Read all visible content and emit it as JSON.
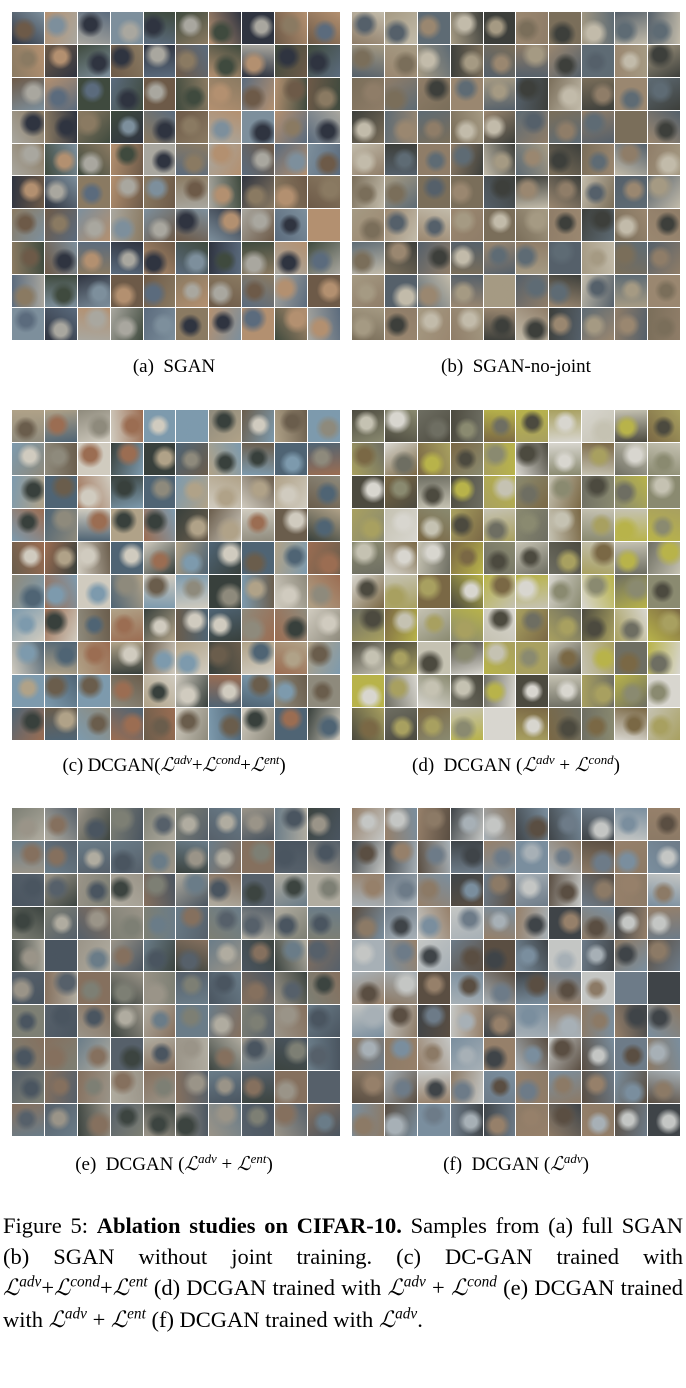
{
  "panels": [
    {
      "id": "a",
      "label": "(a)",
      "name": "SGAN",
      "palette": [
        "#5b6b7d",
        "#8a7a62",
        "#3f4a3e",
        "#a9a79f",
        "#6d5a48",
        "#2f3440",
        "#7d8f9c",
        "#b39070"
      ]
    },
    {
      "id": "b",
      "label": "(b)",
      "name": "SGAN-no-joint",
      "palette": [
        "#7a6e5a",
        "#5e6b74",
        "#a59a83",
        "#3d3f3b",
        "#8f7d68",
        "#c2bbaa",
        "#55606a",
        "#9a8770"
      ]
    },
    {
      "id": "c",
      "label": "(c)",
      "name": "DCGAN",
      "palette": [
        "#6a5d4c",
        "#4f6474",
        "#8e8a7c",
        "#b0a288",
        "#38403c",
        "#7d9aad",
        "#9b6d52",
        "#d0cbbf"
      ]
    },
    {
      "id": "d",
      "label": "(d)",
      "name": "DCGAN",
      "palette": [
        "#8a8a70",
        "#c5c2b2",
        "#4c4a3f",
        "#a8a060",
        "#6e6e62",
        "#d8d6cf",
        "#7a6845",
        "#b8b34a"
      ]
    },
    {
      "id": "e",
      "label": "(e)",
      "name": "DCGAN",
      "palette": [
        "#56606a",
        "#7d7f74",
        "#3c4440",
        "#9a9488",
        "#6a7c88",
        "#85705e",
        "#4a5560",
        "#b0aca0"
      ]
    },
    {
      "id": "f",
      "label": "(f)",
      "name": "DCGAN",
      "palette": [
        "#6d7b88",
        "#8c7a66",
        "#3f4448",
        "#a7b0b6",
        "#5a4e42",
        "#c4c6c4",
        "#7a8e9e",
        "#96806a"
      ]
    }
  ],
  "math": {
    "L": "ℒ",
    "adv": "adv",
    "cond": "cond",
    "ent": "ent",
    "plus": "+"
  },
  "caption": {
    "figure_label": "Figure 5:",
    "bold_title": "Ablation studies on CIFAR-10.",
    "part1": "Samples from (a) full SGAN (b) SGAN without joint training. (c) DC-GAN trained with",
    "part2": "(d) DCGAN trained with",
    "part3": "(e) DCGAN trained with",
    "part4": "(f) DCGAN trained with"
  }
}
